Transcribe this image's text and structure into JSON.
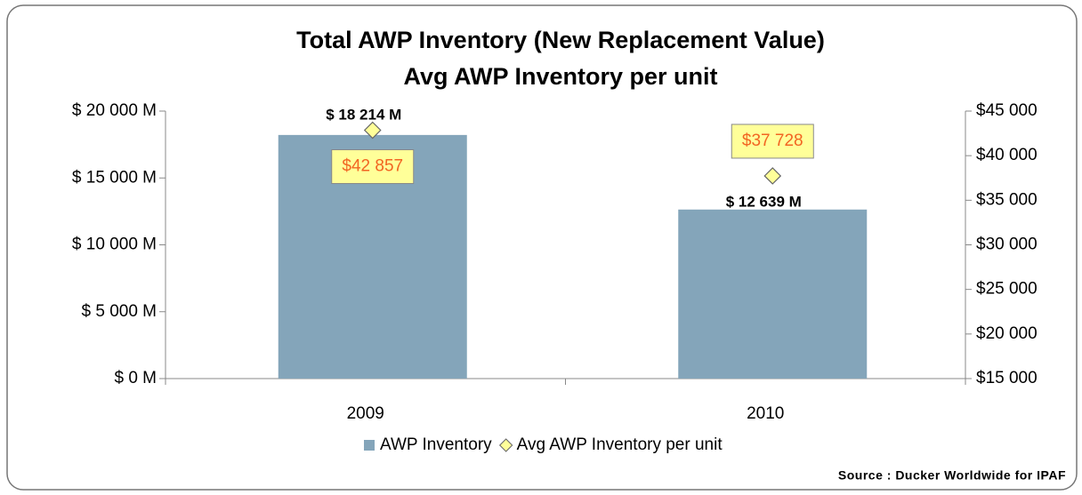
{
  "chart_data": {
    "type": "bar",
    "title": "Total AWP Inventory (New Replacement Value)",
    "subtitle": "Avg AWP Inventory per unit",
    "categories": [
      "2009",
      "2010"
    ],
    "series": [
      {
        "name": "AWP Inventory",
        "color": "#84a5ba",
        "values": [
          18214,
          12639
        ],
        "value_labels": [
          "$ 18 214 M",
          "$ 12 639 M"
        ]
      },
      {
        "name": "Avg AWP Inventory per unit",
        "color": "#ffff99",
        "type": "scatter",
        "axis": "y2",
        "values": [
          42857,
          37728
        ],
        "value_labels": [
          "$42 857",
          "$37 728"
        ]
      }
    ],
    "ylim": [
      0,
      20000
    ],
    "yticks": [
      {
        "value": 0,
        "label": "$ 0 M"
      },
      {
        "value": 5000,
        "label": "$ 5 000 M"
      },
      {
        "value": 10000,
        "label": "$ 10 000 M"
      },
      {
        "value": 15000,
        "label": "$ 15 000 M"
      },
      {
        "value": 20000,
        "label": "$ 20 000 M"
      }
    ],
    "y2lim": [
      15000,
      45000
    ],
    "y2ticks": [
      {
        "value": 15000,
        "label": "$15 000"
      },
      {
        "value": 20000,
        "label": "$20 000"
      },
      {
        "value": 25000,
        "label": "$25 000"
      },
      {
        "value": 30000,
        "label": "$30 000"
      },
      {
        "value": 35000,
        "label": "$35 000"
      },
      {
        "value": 40000,
        "label": "$40 000"
      },
      {
        "value": 45000,
        "label": "$45 000"
      }
    ],
    "legend": "bottom",
    "source": "Source : Ducker Worldwide for IPAF"
  }
}
